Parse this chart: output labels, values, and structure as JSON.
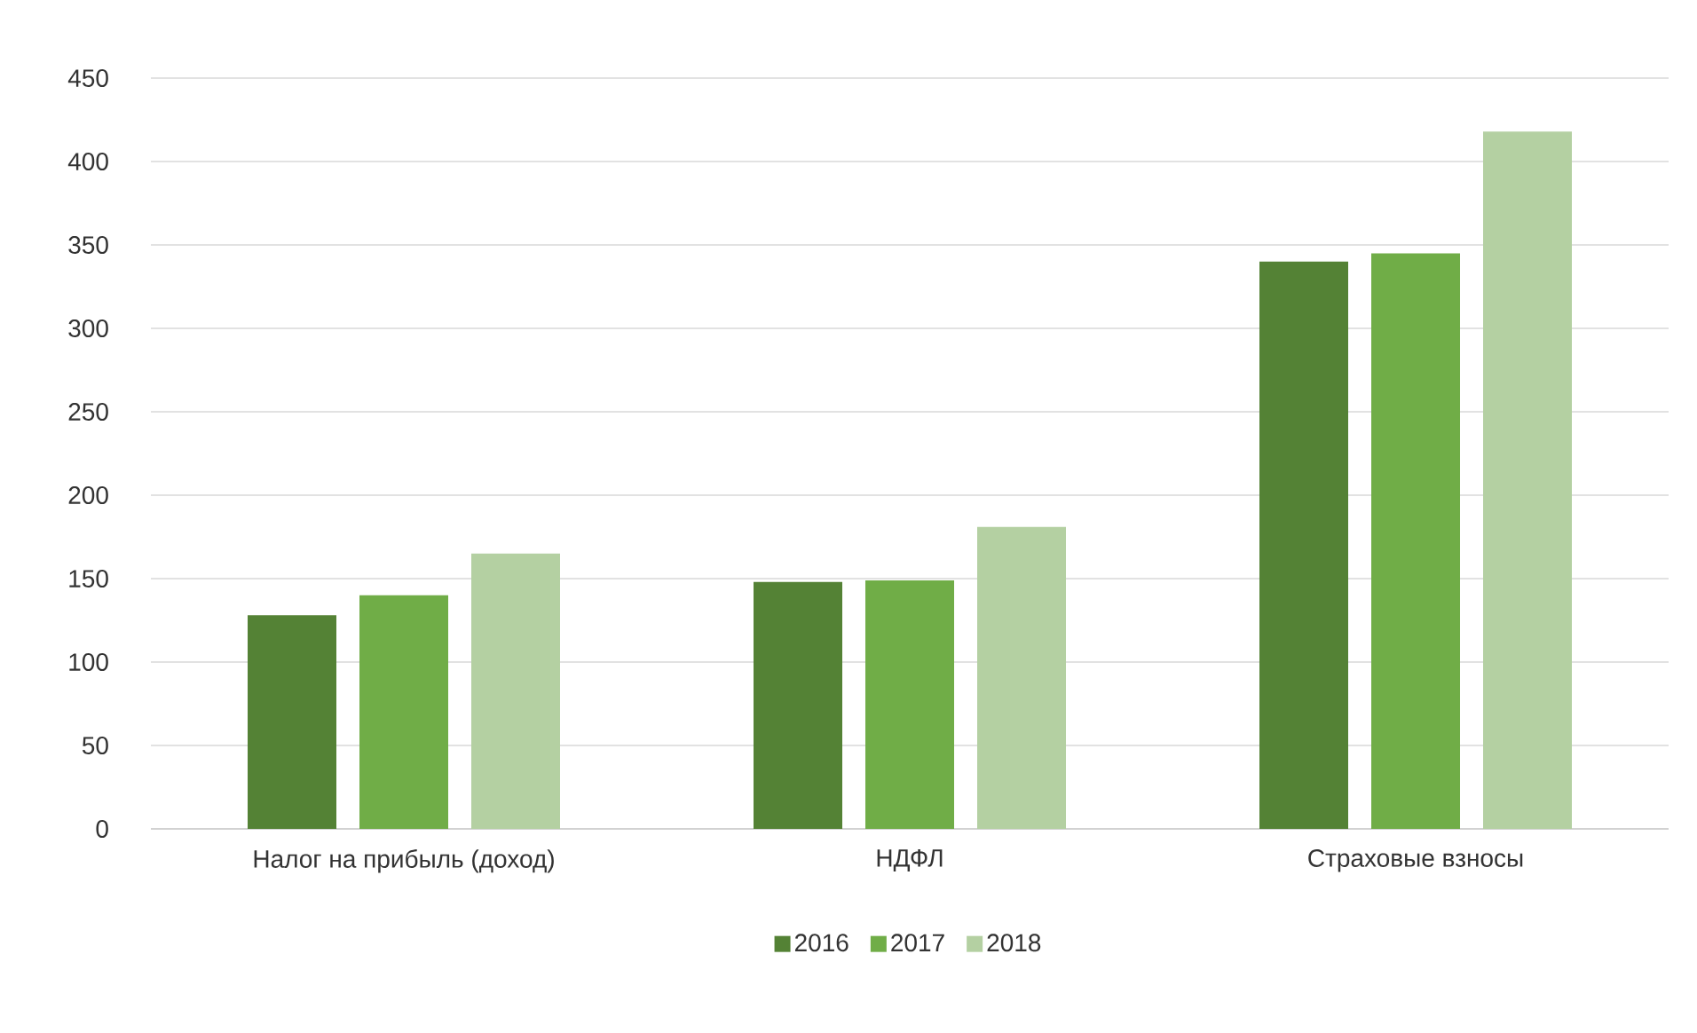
{
  "chart_data": {
    "type": "bar",
    "categories": [
      "Налог на прибыль (доход)",
      "НДФЛ",
      "Страховые взносы"
    ],
    "series": [
      {
        "name": "2016",
        "color": "#548235",
        "values": [
          128,
          148,
          340
        ]
      },
      {
        "name": "2017",
        "color": "#70ad47",
        "values": [
          140,
          149,
          345
        ]
      },
      {
        "name": "2018",
        "color": "#b4d0a2",
        "values": [
          165,
          181,
          418
        ]
      }
    ],
    "ylim": [
      0,
      450
    ],
    "yticks": [
      0,
      50,
      100,
      150,
      200,
      250,
      300,
      350,
      400,
      450
    ],
    "grid": "y",
    "legend": "bottom"
  }
}
